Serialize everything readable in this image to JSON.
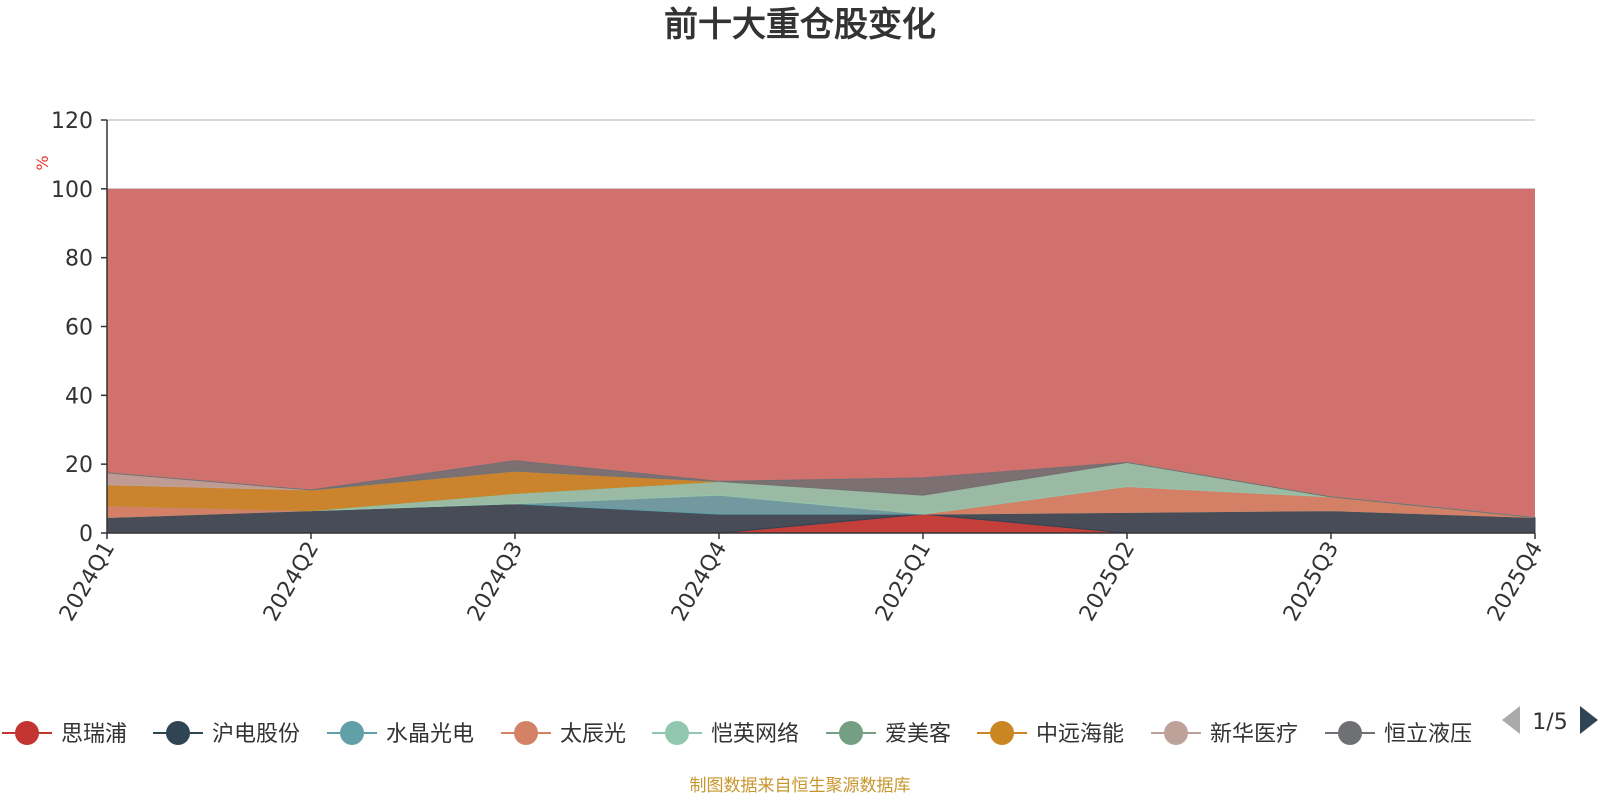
{
  "chart_data": {
    "type": "area",
    "stacked": true,
    "title": "前十大重仓股变化",
    "ylabel": "%",
    "ylim": [
      0,
      120
    ],
    "yticks": [
      0,
      20,
      40,
      60,
      80,
      100,
      120
    ],
    "categories": [
      "2024Q1",
      "2024Q2",
      "2024Q3",
      "2024Q4",
      "2025Q1",
      "2025Q2",
      "2025Q3",
      "2025Q4"
    ],
    "grid": true,
    "series": [
      {
        "name": "思瑞浦",
        "color": "#c23531",
        "values": [
          0,
          0,
          0,
          0,
          5.5,
          0,
          0,
          0
        ]
      },
      {
        "name": "沪电股份",
        "color": "#2f4554",
        "values": [
          4.5,
          6.5,
          8.5,
          5.5,
          0,
          6,
          6.5,
          4.5
        ]
      },
      {
        "name": "水晶光电",
        "color": "#61a0a8",
        "values": [
          0,
          0,
          0,
          5.5,
          0,
          0,
          0,
          0
        ]
      },
      {
        "name": "太辰光",
        "color": "#d48265",
        "values": [
          3.5,
          0,
          0,
          0,
          0,
          7.5,
          4,
          0
        ]
      },
      {
        "name": "恺英网络",
        "color": "#91c7ae",
        "values": [
          0,
          0,
          3,
          4,
          5.5,
          7,
          0,
          0
        ]
      },
      {
        "name": "爱美客",
        "color": "#749f83",
        "values": [
          0,
          0,
          0,
          0,
          0,
          0,
          0,
          0
        ]
      },
      {
        "name": "中远海能",
        "color": "#ca8622",
        "values": [
          6,
          6,
          6.5,
          0,
          0,
          0,
          0,
          0
        ]
      },
      {
        "name": "新华医疗",
        "color": "#bda29a",
        "values": [
          3.5,
          0,
          0,
          0,
          0,
          0,
          0,
          0
        ]
      },
      {
        "name": "恒立液压",
        "color": "#6e7074",
        "values": [
          0,
          0,
          3,
          0,
          5,
          0,
          0,
          0
        ]
      }
    ],
    "legend": {
      "position": "bottom",
      "page": "1/5"
    },
    "background_series_color": "#d06e6a"
  },
  "footer": "制图数据来自恒生聚源数据库"
}
